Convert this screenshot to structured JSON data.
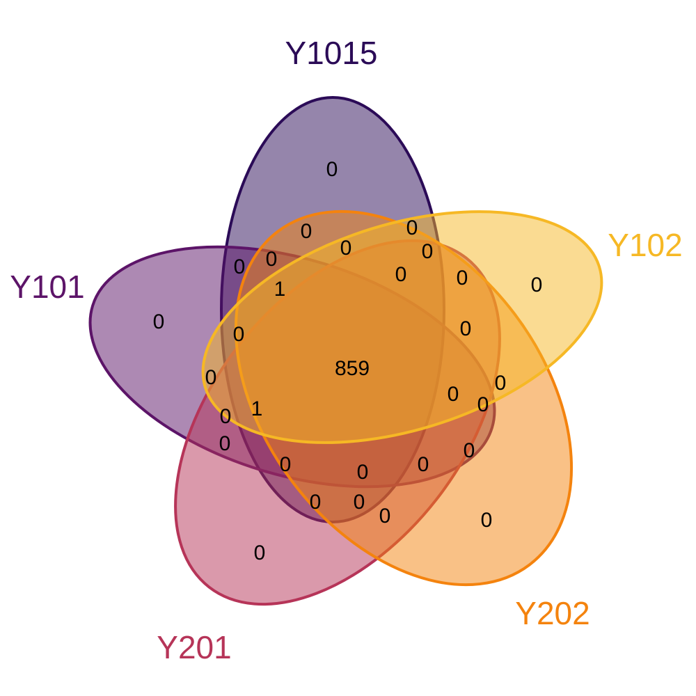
{
  "sets": [
    {
      "name": "Y1015",
      "color": "#2b0b57"
    },
    {
      "name": "Y102",
      "color": "#f6b825"
    },
    {
      "name": "Y202",
      "color": "#f4830e"
    },
    {
      "name": "Y201",
      "color": "#b63458"
    },
    {
      "name": "Y101",
      "color": "#5c1468"
    }
  ],
  "regions": [
    {
      "id": "only-y1015",
      "count": "0"
    },
    {
      "id": "only-y102",
      "count": "0"
    },
    {
      "id": "only-y202",
      "count": "0"
    },
    {
      "id": "only-y201",
      "count": "0"
    },
    {
      "id": "only-y101",
      "count": "0"
    },
    {
      "id": "all-five",
      "count": "859"
    },
    {
      "id": "r07",
      "count": "0"
    },
    {
      "id": "r08",
      "count": "0"
    },
    {
      "id": "r09",
      "count": "0"
    },
    {
      "id": "r10",
      "count": "0"
    },
    {
      "id": "r11",
      "count": "0"
    },
    {
      "id": "r12",
      "count": "0"
    },
    {
      "id": "r13",
      "count": "1"
    },
    {
      "id": "r14",
      "count": "0"
    },
    {
      "id": "r15",
      "count": "0"
    },
    {
      "id": "r16",
      "count": "0"
    },
    {
      "id": "r17",
      "count": "0"
    },
    {
      "id": "r18",
      "count": "0"
    },
    {
      "id": "r19",
      "count": "0"
    },
    {
      "id": "r20",
      "count": "0"
    },
    {
      "id": "r21",
      "count": "0"
    },
    {
      "id": "r22",
      "count": "0"
    },
    {
      "id": "r23",
      "count": "0"
    },
    {
      "id": "r24",
      "count": "1"
    },
    {
      "id": "r25",
      "count": "0"
    },
    {
      "id": "r26",
      "count": "0"
    },
    {
      "id": "r27",
      "count": "0"
    },
    {
      "id": "r28",
      "count": "0"
    },
    {
      "id": "r29",
      "count": "0"
    },
    {
      "id": "r30",
      "count": "0"
    },
    {
      "id": "r31",
      "count": "0"
    },
    {
      "id": "r32",
      "count": "0"
    }
  ]
}
